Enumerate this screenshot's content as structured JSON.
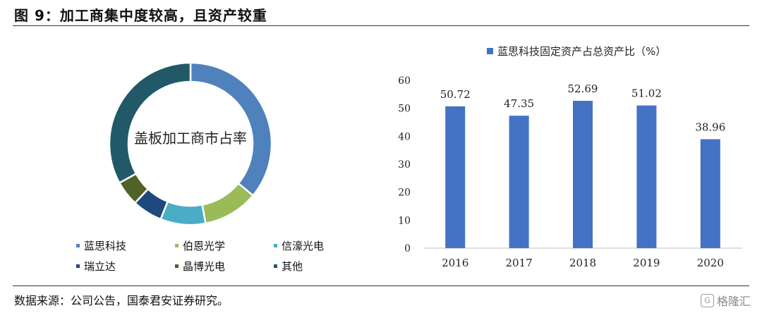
{
  "figure": {
    "title": "图 9：加工商集中度较高，且资产较重",
    "source": "数据来源：公司公告，国泰君安证券研究。",
    "watermark": "格隆汇",
    "watermark_mark": "G"
  },
  "chart_data": [
    {
      "type": "pie",
      "title": "盖板加工商市占率",
      "donut": true,
      "legend_position": "bottom",
      "slices": [
        {
          "label": "蓝思科技",
          "value": 36,
          "color": "#4f81bd"
        },
        {
          "label": "伯恩光学",
          "value": 11,
          "color": "#9bbb59"
        },
        {
          "label": "信濠光电",
          "value": 9,
          "color": "#4bacc6"
        },
        {
          "label": "瑞立达",
          "value": 6,
          "color": "#1f497d"
        },
        {
          "label": "晶博光电",
          "value": 5,
          "color": "#4f6228"
        },
        {
          "label": "其他",
          "value": 33,
          "color": "#215968"
        }
      ]
    },
    {
      "type": "bar",
      "title": "",
      "legend_position": "top",
      "categories": [
        "2016",
        "2017",
        "2018",
        "2019",
        "2020"
      ],
      "series": [
        {
          "name": "蓝思科技固定资产占总资产比（%）",
          "color": "#4472c4",
          "values": [
            50.72,
            47.35,
            52.69,
            51.02,
            38.96
          ],
          "value_labels": [
            "50.72",
            "47.35",
            "52.69",
            "51.02",
            "38.96"
          ]
        }
      ],
      "ylim": [
        0,
        60
      ],
      "yticks": [
        0,
        10,
        20,
        30,
        40,
        50,
        60
      ],
      "grid": false
    }
  ]
}
